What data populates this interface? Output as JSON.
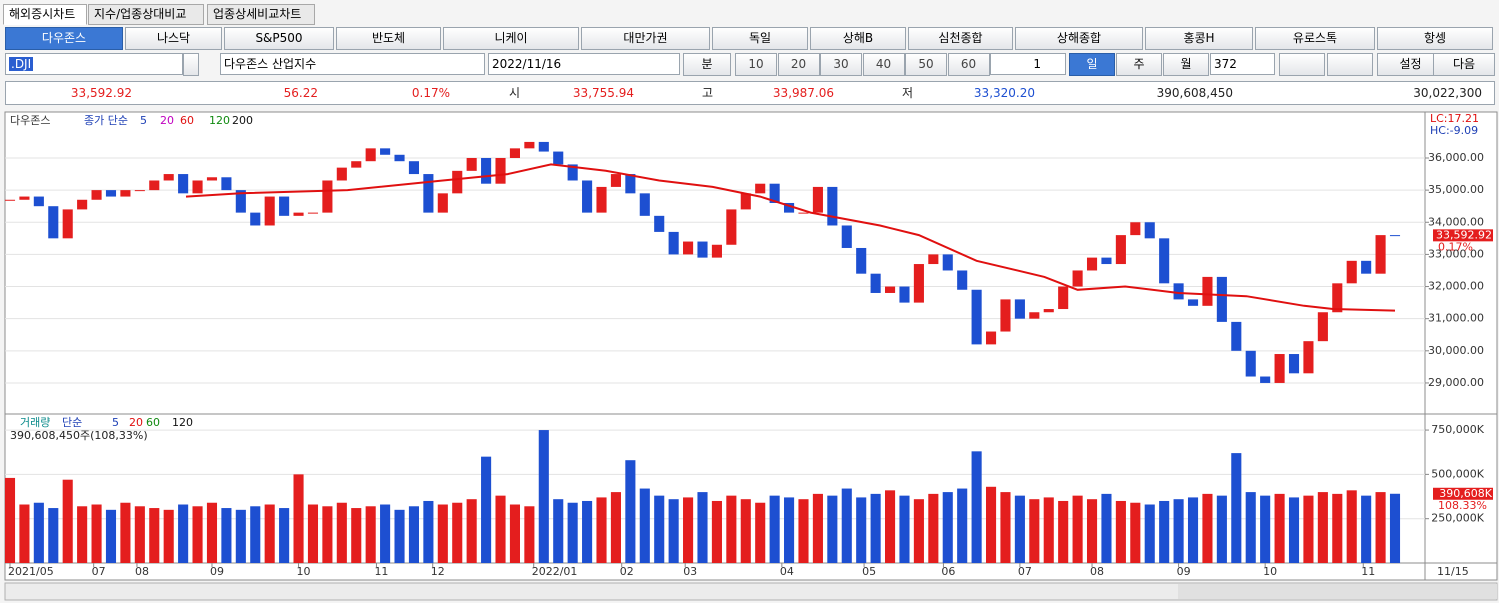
{
  "tabs": [
    "해외증시차트",
    "지수/업종상대비교",
    "업종상세비교차트"
  ],
  "markets": [
    "다우존스",
    "나스닥",
    "S&P500",
    "반도체",
    "니케이",
    "대만가권",
    "독일",
    "상해B",
    "심천종합",
    "상해종합",
    "홍콩H",
    "유로스톡",
    "항셍"
  ],
  "toolbar": {
    "symbol": ".DJI",
    "name": "다우존스 산업지수",
    "date": "2022/11/16",
    "unit": "분",
    "minutes": [
      "10",
      "20",
      "30",
      "40",
      "50",
      "60"
    ],
    "count": "1",
    "periods": [
      "일",
      "주",
      "월"
    ],
    "bars": "372",
    "settings": "설정",
    "next": "다음"
  },
  "quote": {
    "last": "33,592.92",
    "change": "56.22",
    "pct": "0.17%",
    "open_label": "시",
    "open": "33,755.94",
    "high_label": "고",
    "high": "33,987.06",
    "low_label": "저",
    "low": "33,320.20",
    "volume": "390,608,450",
    "prev_volume": "30,022,300"
  },
  "chart_data": [
    {
      "type": "candlestick",
      "title": "다우존스",
      "legend_label": "종가 단순",
      "ma_periods": [
        "5",
        "20",
        "60",
        "120",
        "200"
      ],
      "values": [
        34700,
        34800,
        34500,
        33500,
        34400,
        34700,
        35000,
        34800,
        35000,
        35000,
        35300,
        35500,
        34900,
        35300,
        35400,
        35000,
        34300,
        33900,
        34800,
        34200,
        34300,
        34300,
        35300,
        35700,
        35900,
        36300,
        36100,
        35900,
        35500,
        34300,
        34900,
        35600,
        36000,
        35200,
        36000,
        36300,
        36500,
        36200,
        35800,
        35300,
        34300,
        35100,
        35500,
        34900,
        34200,
        33700,
        33000,
        33400,
        32900,
        33300,
        34400,
        34900,
        35200,
        34600,
        34300,
        34300,
        35100,
        33900,
        33200,
        32400,
        31800,
        32000,
        31500,
        32700,
        33000,
        32500,
        31900,
        30200,
        30600,
        31600,
        31000,
        31200,
        31300,
        32000,
        32500,
        32900,
        32700,
        33600,
        34000,
        33500,
        32100,
        31600,
        31400,
        32300,
        30900,
        30000,
        29200,
        29000,
        29900,
        29300,
        30300,
        31200,
        32100,
        32800,
        32400,
        33600,
        33592.92
      ],
      "ma": {
        "color": "#e01010",
        "x": [
          12.2,
          16,
          23.4,
          30,
          34.5,
          37.5,
          41.3,
          45,
          48.7,
          52,
          55.5,
          60.3,
          63,
          67,
          71.7,
          74,
          77.3,
          81,
          85.7,
          89.7,
          91.7,
          96
        ],
        "values": [
          34800,
          34900,
          35000,
          35300,
          35500,
          35800,
          35600,
          35300,
          35100,
          34800,
          34300,
          33900,
          33600,
          32800,
          32300,
          31900,
          32000,
          31800,
          31700,
          31400,
          31300,
          31250
        ]
      },
      "up_color": "#e41e1e",
      "down_color": "#1d4fd1",
      "ylim": [
        28065,
        37400
      ],
      "yticks": [
        {
          "value": 29000,
          "label": "29,000.00"
        },
        {
          "value": 30000,
          "label": "30,000.00"
        },
        {
          "value": 31000,
          "label": "31,000.00"
        },
        {
          "value": 32000,
          "label": "32,000.00"
        },
        {
          "value": 33000,
          "label": "33,000.00"
        },
        {
          "value": 34000,
          "label": "34,000.00"
        },
        {
          "value": 35000,
          "label": "35,000.00"
        },
        {
          "value": 36000,
          "label": "36,000.00"
        }
      ],
      "last_label": "33,592.92",
      "pct_label": "0.17%",
      "lc": "LC:17.21",
      "hc": "HC:-9.09"
    },
    {
      "type": "bar",
      "title": "거래량",
      "legend_label": "단순",
      "ma_periods": [
        "5",
        "20",
        "60",
        "120"
      ],
      "info": "390,608,450주(108,33%)",
      "values": [
        480000,
        330000,
        340000,
        310000,
        470000,
        320000,
        330000,
        300000,
        340000,
        320000,
        310000,
        300000,
        330000,
        320000,
        340000,
        310000,
        300000,
        320000,
        330000,
        310000,
        500000,
        330000,
        320000,
        340000,
        310000,
        320000,
        330000,
        300000,
        320000,
        350000,
        330000,
        340000,
        360000,
        600000,
        380000,
        330000,
        320000,
        750000,
        360000,
        340000,
        350000,
        370000,
        400000,
        580000,
        420000,
        380000,
        360000,
        370000,
        400000,
        350000,
        380000,
        360000,
        340000,
        380000,
        370000,
        360000,
        390000,
        380000,
        420000,
        370000,
        390000,
        410000,
        380000,
        360000,
        390000,
        400000,
        420000,
        630000,
        430000,
        400000,
        380000,
        360000,
        370000,
        350000,
        380000,
        360000,
        390000,
        350000,
        340000,
        330000,
        350000,
        360000,
        370000,
        390000,
        380000,
        620000,
        400000,
        380000,
        390000,
        370000,
        380000,
        400000,
        390000,
        410000,
        380000,
        400000,
        390608
      ],
      "ylim": [
        0,
        835000
      ],
      "yticks": [
        {
          "value": 250000,
          "label": "250,000K"
        },
        {
          "value": 500000,
          "label": "500,000K"
        },
        {
          "value": 750000,
          "label": "750,000K"
        }
      ],
      "last_label": "390,608K",
      "pct_label": "108.33%",
      "xticks": [
        {
          "value": 0,
          "label": "2021/05"
        },
        {
          "value": 5.8,
          "label": "07"
        },
        {
          "value": 8.8,
          "label": "08"
        },
        {
          "value": 14,
          "label": "09"
        },
        {
          "value": 20,
          "label": "10"
        },
        {
          "value": 25.4,
          "label": "11"
        },
        {
          "value": 29.3,
          "label": "12"
        },
        {
          "value": 36.3,
          "label": "2022/01"
        },
        {
          "value": 42.4,
          "label": "02"
        },
        {
          "value": 46.8,
          "label": "03"
        },
        {
          "value": 53.5,
          "label": "04"
        },
        {
          "value": 59.2,
          "label": "05"
        },
        {
          "value": 64.7,
          "label": "06"
        },
        {
          "value": 70,
          "label": "07"
        },
        {
          "value": 75,
          "label": "08"
        },
        {
          "value": 81,
          "label": "09"
        },
        {
          "value": 87,
          "label": "10"
        },
        {
          "value": 93.8,
          "label": "11"
        }
      ],
      "end_label": "11/15"
    }
  ]
}
